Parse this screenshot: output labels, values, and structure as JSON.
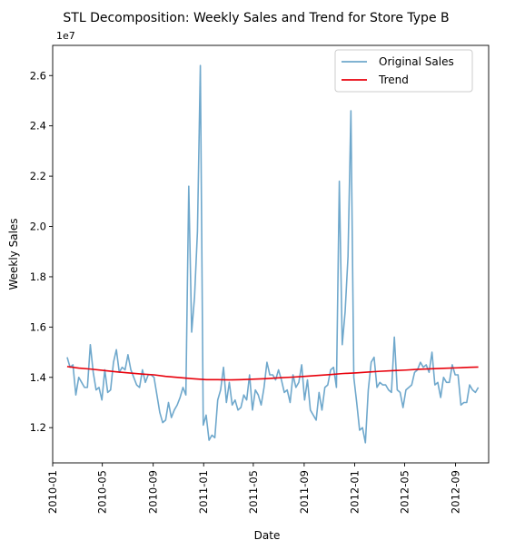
{
  "chart_data": {
    "type": "line",
    "title": "STL Decomposition: Weekly Sales and Trend for Store Type B",
    "xlabel": "Date",
    "ylabel": "Weekly Sales",
    "y_offset_label": "1e7",
    "xlim": [
      "2010-01-01",
      "2012-11-20"
    ],
    "ylim": [
      1.06,
      2.72
    ],
    "x_ticks": [
      {
        "date": "2010-01-01",
        "label": "2010-01"
      },
      {
        "date": "2010-05-01",
        "label": "2010-05"
      },
      {
        "date": "2010-09-01",
        "label": "2010-09"
      },
      {
        "date": "2011-01-01",
        "label": "2011-01"
      },
      {
        "date": "2011-05-01",
        "label": "2011-05"
      },
      {
        "date": "2011-09-01",
        "label": "2011-09"
      },
      {
        "date": "2012-01-01",
        "label": "2012-01"
      },
      {
        "date": "2012-05-01",
        "label": "2012-05"
      },
      {
        "date": "2012-09-01",
        "label": "2012-09"
      }
    ],
    "y_ticks": [
      {
        "value": 1.2,
        "label": "1.2"
      },
      {
        "value": 1.4,
        "label": "1.4"
      },
      {
        "value": 1.6,
        "label": "1.6"
      },
      {
        "value": 1.8,
        "label": "1.8"
      },
      {
        "value": 2.0,
        "label": "2.0"
      },
      {
        "value": 2.2,
        "label": "2.2"
      },
      {
        "value": 2.4,
        "label": "2.4"
      },
      {
        "value": 2.6,
        "label": "2.6"
      }
    ],
    "legend_position": "top-right",
    "grid": false,
    "series": [
      {
        "name": "Original Sales",
        "color": "#6fa8cc",
        "points": [
          [
            "2010-02-05",
            1.48
          ],
          [
            "2010-02-12",
            1.44
          ],
          [
            "2010-02-19",
            1.45
          ],
          [
            "2010-02-26",
            1.33
          ],
          [
            "2010-03-05",
            1.4
          ],
          [
            "2010-03-12",
            1.38
          ],
          [
            "2010-03-19",
            1.36
          ],
          [
            "2010-03-26",
            1.36
          ],
          [
            "2010-04-02",
            1.53
          ],
          [
            "2010-04-09",
            1.42
          ],
          [
            "2010-04-16",
            1.35
          ],
          [
            "2010-04-23",
            1.36
          ],
          [
            "2010-04-30",
            1.31
          ],
          [
            "2010-05-07",
            1.43
          ],
          [
            "2010-05-14",
            1.34
          ],
          [
            "2010-05-21",
            1.35
          ],
          [
            "2010-05-28",
            1.46
          ],
          [
            "2010-06-04",
            1.51
          ],
          [
            "2010-06-11",
            1.42
          ],
          [
            "2010-06-18",
            1.44
          ],
          [
            "2010-06-25",
            1.43
          ],
          [
            "2010-07-02",
            1.49
          ],
          [
            "2010-07-09",
            1.43
          ],
          [
            "2010-07-16",
            1.4
          ],
          [
            "2010-07-23",
            1.37
          ],
          [
            "2010-07-30",
            1.36
          ],
          [
            "2010-08-06",
            1.43
          ],
          [
            "2010-08-13",
            1.38
          ],
          [
            "2010-08-20",
            1.41
          ],
          [
            "2010-08-27",
            1.41
          ],
          [
            "2010-09-03",
            1.4
          ],
          [
            "2010-09-10",
            1.33
          ],
          [
            "2010-09-17",
            1.26
          ],
          [
            "2010-09-24",
            1.22
          ],
          [
            "2010-10-01",
            1.23
          ],
          [
            "2010-10-08",
            1.3
          ],
          [
            "2010-10-15",
            1.24
          ],
          [
            "2010-10-22",
            1.27
          ],
          [
            "2010-10-29",
            1.29
          ],
          [
            "2010-11-05",
            1.32
          ],
          [
            "2010-11-12",
            1.36
          ],
          [
            "2010-11-19",
            1.33
          ],
          [
            "2010-11-26",
            2.16
          ],
          [
            "2010-12-03",
            1.58
          ],
          [
            "2010-12-10",
            1.72
          ],
          [
            "2010-12-17",
            1.98
          ],
          [
            "2010-12-24",
            2.64
          ],
          [
            "2010-12-31",
            1.21
          ],
          [
            "2011-01-07",
            1.25
          ],
          [
            "2011-01-14",
            1.15
          ],
          [
            "2011-01-21",
            1.17
          ],
          [
            "2011-01-28",
            1.16
          ],
          [
            "2011-02-04",
            1.31
          ],
          [
            "2011-02-11",
            1.35
          ],
          [
            "2011-02-18",
            1.44
          ],
          [
            "2011-02-25",
            1.3
          ],
          [
            "2011-03-04",
            1.38
          ],
          [
            "2011-03-11",
            1.29
          ],
          [
            "2011-03-18",
            1.31
          ],
          [
            "2011-03-25",
            1.27
          ],
          [
            "2011-04-01",
            1.28
          ],
          [
            "2011-04-08",
            1.33
          ],
          [
            "2011-04-15",
            1.31
          ],
          [
            "2011-04-22",
            1.41
          ],
          [
            "2011-04-29",
            1.27
          ],
          [
            "2011-05-06",
            1.35
          ],
          [
            "2011-05-13",
            1.33
          ],
          [
            "2011-05-20",
            1.29
          ],
          [
            "2011-05-27",
            1.36
          ],
          [
            "2011-06-03",
            1.46
          ],
          [
            "2011-06-10",
            1.41
          ],
          [
            "2011-06-17",
            1.41
          ],
          [
            "2011-06-24",
            1.39
          ],
          [
            "2011-07-01",
            1.43
          ],
          [
            "2011-07-08",
            1.39
          ],
          [
            "2011-07-15",
            1.34
          ],
          [
            "2011-07-22",
            1.35
          ],
          [
            "2011-07-29",
            1.3
          ],
          [
            "2011-08-05",
            1.41
          ],
          [
            "2011-08-12",
            1.36
          ],
          [
            "2011-08-19",
            1.38
          ],
          [
            "2011-08-26",
            1.45
          ],
          [
            "2011-09-02",
            1.31
          ],
          [
            "2011-09-09",
            1.39
          ],
          [
            "2011-09-16",
            1.27
          ],
          [
            "2011-09-23",
            1.25
          ],
          [
            "2011-09-30",
            1.23
          ],
          [
            "2011-10-07",
            1.34
          ],
          [
            "2011-10-14",
            1.27
          ],
          [
            "2011-10-21",
            1.36
          ],
          [
            "2011-10-28",
            1.37
          ],
          [
            "2011-11-04",
            1.43
          ],
          [
            "2011-11-11",
            1.44
          ],
          [
            "2011-11-18",
            1.36
          ],
          [
            "2011-11-25",
            2.18
          ],
          [
            "2011-12-02",
            1.53
          ],
          [
            "2011-12-09",
            1.66
          ],
          [
            "2011-12-16",
            1.88
          ],
          [
            "2011-12-23",
            2.46
          ],
          [
            "2011-12-30",
            1.4
          ],
          [
            "2012-01-06",
            1.3
          ],
          [
            "2012-01-13",
            1.19
          ],
          [
            "2012-01-20",
            1.2
          ],
          [
            "2012-01-27",
            1.14
          ],
          [
            "2012-02-03",
            1.35
          ],
          [
            "2012-02-10",
            1.46
          ],
          [
            "2012-02-17",
            1.48
          ],
          [
            "2012-02-24",
            1.36
          ],
          [
            "2012-03-02",
            1.38
          ],
          [
            "2012-03-09",
            1.37
          ],
          [
            "2012-03-16",
            1.37
          ],
          [
            "2012-03-23",
            1.35
          ],
          [
            "2012-03-30",
            1.34
          ],
          [
            "2012-04-06",
            1.56
          ],
          [
            "2012-04-13",
            1.35
          ],
          [
            "2012-04-20",
            1.34
          ],
          [
            "2012-04-27",
            1.28
          ],
          [
            "2012-05-04",
            1.35
          ],
          [
            "2012-05-11",
            1.36
          ],
          [
            "2012-05-18",
            1.37
          ],
          [
            "2012-05-25",
            1.42
          ],
          [
            "2012-06-01",
            1.43
          ],
          [
            "2012-06-08",
            1.46
          ],
          [
            "2012-06-15",
            1.44
          ],
          [
            "2012-06-22",
            1.45
          ],
          [
            "2012-06-29",
            1.42
          ],
          [
            "2012-07-06",
            1.5
          ],
          [
            "2012-07-13",
            1.37
          ],
          [
            "2012-07-20",
            1.38
          ],
          [
            "2012-07-27",
            1.32
          ],
          [
            "2012-08-03",
            1.4
          ],
          [
            "2012-08-10",
            1.38
          ],
          [
            "2012-08-17",
            1.38
          ],
          [
            "2012-08-24",
            1.45
          ],
          [
            "2012-08-31",
            1.41
          ],
          [
            "2012-09-07",
            1.41
          ],
          [
            "2012-09-14",
            1.29
          ],
          [
            "2012-09-21",
            1.3
          ],
          [
            "2012-09-28",
            1.3
          ],
          [
            "2012-10-05",
            1.37
          ],
          [
            "2012-10-12",
            1.35
          ],
          [
            "2012-10-19",
            1.34
          ],
          [
            "2012-10-26",
            1.36
          ]
        ]
      },
      {
        "name": "Trend",
        "color": "#e8000b",
        "points": [
          [
            "2010-02-05",
            1.443
          ],
          [
            "2010-03-05",
            1.437
          ],
          [
            "2010-04-02",
            1.433
          ],
          [
            "2010-05-07",
            1.427
          ],
          [
            "2010-06-04",
            1.422
          ],
          [
            "2010-07-02",
            1.418
          ],
          [
            "2010-08-06",
            1.413
          ],
          [
            "2010-09-03",
            1.41
          ],
          [
            "2010-10-01",
            1.404
          ],
          [
            "2010-11-05",
            1.399
          ],
          [
            "2010-12-03",
            1.395
          ],
          [
            "2011-01-07",
            1.391
          ],
          [
            "2011-02-04",
            1.391
          ],
          [
            "2011-03-04",
            1.39
          ],
          [
            "2011-04-01",
            1.391
          ],
          [
            "2011-05-06",
            1.393
          ],
          [
            "2011-06-03",
            1.395
          ],
          [
            "2011-07-01",
            1.398
          ],
          [
            "2011-08-05",
            1.401
          ],
          [
            "2011-09-02",
            1.404
          ],
          [
            "2011-10-07",
            1.408
          ],
          [
            "2011-11-04",
            1.411
          ],
          [
            "2011-12-02",
            1.415
          ],
          [
            "2012-01-06",
            1.418
          ],
          [
            "2012-02-03",
            1.421
          ],
          [
            "2012-03-02",
            1.424
          ],
          [
            "2012-04-06",
            1.427
          ],
          [
            "2012-05-04",
            1.429
          ],
          [
            "2012-06-01",
            1.432
          ],
          [
            "2012-07-06",
            1.434
          ],
          [
            "2012-08-03",
            1.436
          ],
          [
            "2012-09-07",
            1.438
          ],
          [
            "2012-10-05",
            1.44
          ],
          [
            "2012-10-26",
            1.441
          ]
        ]
      }
    ]
  }
}
